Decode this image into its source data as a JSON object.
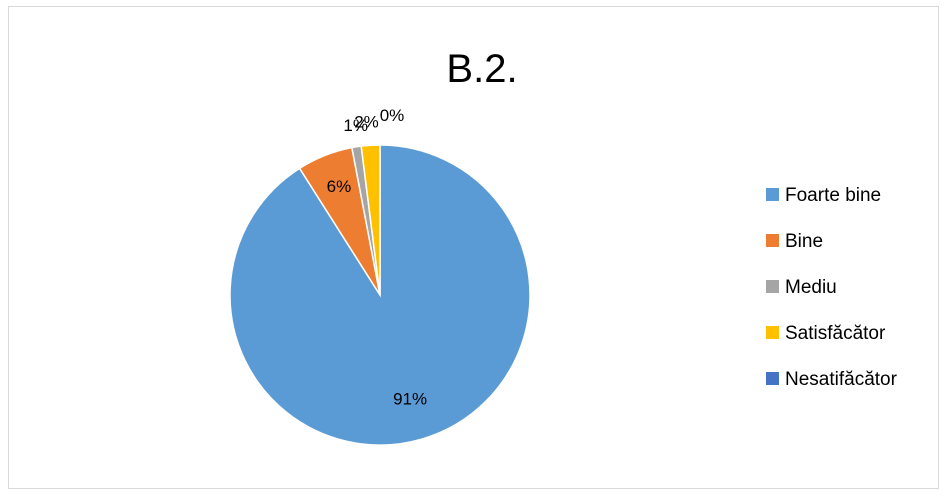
{
  "chart_data": {
    "type": "pie",
    "title": "B.2.",
    "categories": [
      "Foarte bine",
      "Bine",
      "Mediu",
      "Satisfăcător",
      "Nesatifăcător"
    ],
    "values": [
      91,
      6,
      1,
      2,
      0
    ],
    "data_labels": [
      "91%",
      "6%",
      "1%",
      "2%",
      "0%"
    ],
    "colors": [
      "#5b9bd5",
      "#ed7d31",
      "#a5a5a5",
      "#ffc000",
      "#4472c4"
    ],
    "legend_position": "right",
    "start_angle": "top",
    "direction": "clockwise"
  }
}
